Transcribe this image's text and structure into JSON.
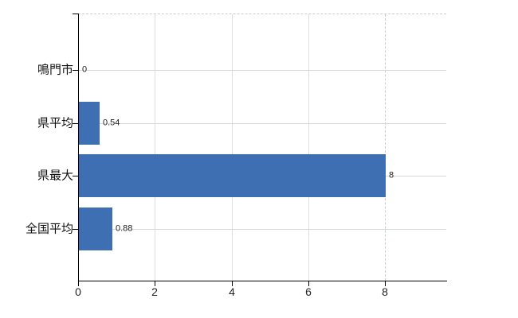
{
  "chart_data": {
    "type": "bar",
    "orientation": "horizontal",
    "title": "",
    "xlabel": "",
    "ylabel": "",
    "categories": [
      "鳴門市",
      "県平均",
      "県最大",
      "全国平均"
    ],
    "values": [
      0,
      0.54,
      8,
      0.88
    ],
    "value_labels": [
      "0",
      "0.54",
      "8",
      "0.88"
    ],
    "xticks": [
      0,
      2,
      4,
      6,
      8
    ],
    "xtick_labels": [
      "0",
      "2",
      "4",
      "6",
      "8"
    ],
    "xlim": [
      0,
      9.6
    ],
    "xgrid_solid": [
      2,
      4,
      6
    ],
    "xgrid_dashed": [
      8
    ],
    "grid": true,
    "legend_position": "none",
    "colors": {
      "bar": "#3e6fb2",
      "grid_horizontal": "#d2dbd2",
      "grid_vertical": "#dedede",
      "grid_dashed": "#cfc9cf",
      "axis": "#000000",
      "label": "#222222"
    }
  }
}
